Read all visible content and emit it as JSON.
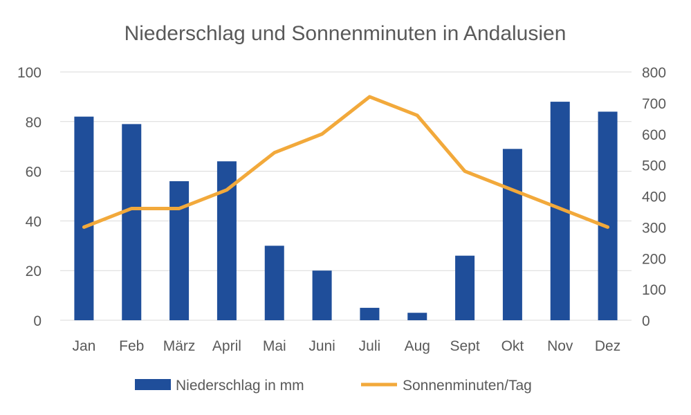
{
  "chart_data": {
    "type": "bar",
    "title": "Niederschlag und Sonnenminuten in Andalusien",
    "categories": [
      "Jan",
      "Feb",
      "März",
      "April",
      "Mai",
      "Juni",
      "Juli",
      "Aug",
      "Sept",
      "Okt",
      "Nov",
      "Dez"
    ],
    "series": [
      {
        "name": "Niederschlag in mm",
        "type": "bar",
        "axis": "left",
        "color": "#1F4E9A",
        "values": [
          82,
          79,
          56,
          64,
          30,
          20,
          5,
          3,
          26,
          69,
          88,
          84
        ]
      },
      {
        "name": "Sonnenminuten/Tag",
        "type": "line",
        "axis": "right",
        "color": "#F2A93B",
        "values": [
          300,
          360,
          360,
          420,
          540,
          600,
          720,
          660,
          480,
          420,
          360,
          300
        ]
      }
    ],
    "ylim_left": [
      0,
      100
    ],
    "yticks_left": [
      "0",
      "20",
      "40",
      "60",
      "80",
      "100"
    ],
    "ylim_right": [
      0,
      800
    ],
    "yticks_right": [
      "0",
      "100",
      "200",
      "300",
      "400",
      "500",
      "600",
      "700",
      "800"
    ],
    "grid": true,
    "legend_position": "bottom",
    "gridline_color": "#D9D9D9",
    "text_color": "#595959"
  }
}
